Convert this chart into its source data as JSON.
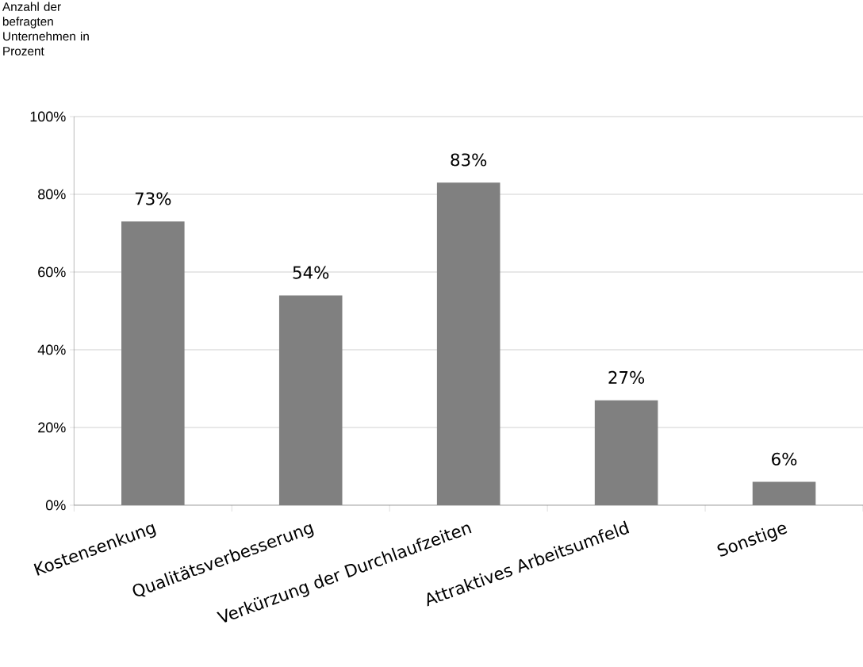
{
  "chart_data": {
    "type": "bar",
    "ylabel": "Anzahl der befragten Unternehmen in Prozent",
    "categories": [
      "Kostensenkung",
      "Qualitätsverbesserung",
      "Verkürzung der Durchlaufzeiten",
      "Attraktives Arbeitsumfeld",
      "Sonstige"
    ],
    "values": [
      73,
      54,
      83,
      27,
      6
    ],
    "value_labels": [
      "73%",
      "54%",
      "83%",
      "27%",
      "6%"
    ],
    "color": "#808080",
    "ylim": [
      0,
      100
    ],
    "yticks": [
      {
        "value": 0,
        "label": "0%"
      },
      {
        "value": 20,
        "label": "20%"
      },
      {
        "value": 40,
        "label": "40%"
      },
      {
        "value": 60,
        "label": "60%"
      },
      {
        "value": 80,
        "label": "80%"
      },
      {
        "value": 100,
        "label": "100%"
      }
    ],
    "grid": "y"
  }
}
